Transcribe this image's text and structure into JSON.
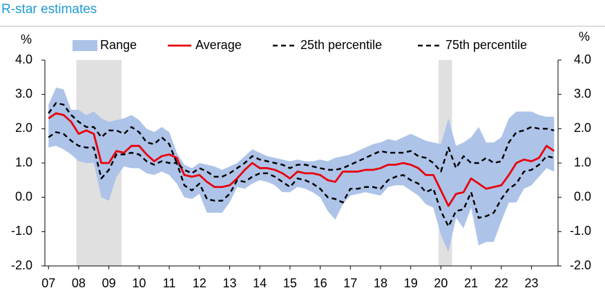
{
  "chart_data": {
    "type": "line",
    "title": "R-star estimates",
    "y_label": "%",
    "y2_label": "%",
    "x": [
      2007,
      2007.25,
      2007.5,
      2007.75,
      2008,
      2008.25,
      2008.5,
      2008.75,
      2009,
      2009.25,
      2009.5,
      2009.75,
      2010,
      2010.25,
      2010.5,
      2010.75,
      2011,
      2011.25,
      2011.5,
      2011.75,
      2012,
      2012.25,
      2012.5,
      2012.75,
      2013,
      2013.25,
      2013.5,
      2013.75,
      2014,
      2014.25,
      2014.5,
      2014.75,
      2015,
      2015.25,
      2015.5,
      2015.75,
      2016,
      2016.25,
      2016.5,
      2016.75,
      2017,
      2017.25,
      2017.5,
      2017.75,
      2018,
      2018.25,
      2018.5,
      2018.75,
      2019,
      2019.25,
      2019.5,
      2019.75,
      2020,
      2020.25,
      2020.5,
      2020.75,
      2021,
      2021.25,
      2021.5,
      2021.75,
      2022,
      2022.25,
      2022.5,
      2022.75,
      2023,
      2023.25,
      2023.5,
      2023.75
    ],
    "series": [
      {
        "name": "Range",
        "color": "#aec3e8",
        "band": true,
        "high": [
          2.7,
          3.2,
          3.15,
          2.55,
          2.55,
          2.4,
          2.5,
          2.3,
          2.2,
          2.25,
          2.3,
          2.4,
          2.25,
          2.0,
          1.9,
          2.05,
          1.9,
          1.3,
          0.95,
          0.85,
          1.0,
          0.95,
          0.9,
          0.8,
          0.9,
          1.0,
          1.2,
          1.4,
          1.3,
          1.2,
          1.15,
          1.1,
          1.05,
          1.1,
          1.05,
          1.05,
          1.1,
          1.05,
          1.15,
          1.2,
          1.25,
          1.35,
          1.45,
          1.55,
          1.6,
          1.7,
          1.65,
          1.75,
          1.85,
          1.75,
          1.65,
          1.6,
          1.55,
          2.3,
          1.5,
          1.6,
          1.75,
          2.05,
          1.6,
          1.6,
          1.75,
          2.3,
          2.5,
          2.5,
          2.5,
          2.4,
          2.35,
          2.35
        ],
        "low": [
          1.45,
          1.5,
          1.4,
          1.25,
          1.05,
          1.0,
          1.0,
          0.0,
          -0.1,
          0.6,
          0.9,
          0.85,
          0.85,
          0.7,
          0.65,
          0.75,
          0.65,
          0.4,
          0.0,
          -0.05,
          0.1,
          -0.45,
          -0.45,
          -0.45,
          -0.15,
          0.3,
          0.25,
          0.4,
          0.5,
          0.45,
          0.35,
          0.15,
          0.15,
          0.3,
          0.25,
          0.15,
          0.0,
          -0.4,
          -0.65,
          -0.2,
          0.05,
          0.1,
          0.15,
          0.1,
          0.05,
          0.3,
          0.35,
          0.35,
          0.2,
          0.05,
          -0.2,
          -0.3,
          -1.1,
          -1.6,
          -0.6,
          -0.9,
          -0.3,
          -1.4,
          -1.3,
          -1.3,
          -0.7,
          -0.15,
          -0.15,
          0.25,
          0.35,
          0.6,
          0.85,
          0.75
        ]
      },
      {
        "name": "Average",
        "color": "#e8000b",
        "dashed": false,
        "values": [
          2.3,
          2.45,
          2.4,
          2.2,
          1.85,
          1.95,
          1.85,
          1.0,
          1.0,
          1.35,
          1.3,
          1.5,
          1.5,
          1.25,
          1.05,
          1.2,
          1.25,
          1.15,
          0.65,
          0.6,
          0.65,
          0.45,
          0.3,
          0.3,
          0.35,
          0.55,
          0.8,
          1.0,
          0.85,
          0.85,
          0.8,
          0.7,
          0.55,
          0.75,
          0.7,
          0.7,
          0.65,
          0.5,
          0.45,
          0.75,
          0.75,
          0.75,
          0.8,
          0.8,
          0.85,
          0.95,
          0.95,
          1.0,
          0.95,
          0.85,
          0.65,
          0.65,
          0.2,
          -0.25,
          0.1,
          0.15,
          0.55,
          0.4,
          0.25,
          0.3,
          0.35,
          0.65,
          1.0,
          1.1,
          1.05,
          1.15,
          1.5,
          1.35
        ]
      },
      {
        "name": "25th percentile",
        "color": "#000000",
        "dashed": true,
        "values": [
          1.75,
          1.9,
          1.85,
          1.65,
          1.5,
          1.45,
          1.45,
          0.55,
          0.8,
          1.25,
          1.25,
          1.3,
          1.25,
          1.05,
          0.95,
          1.05,
          1.0,
          1.0,
          0.35,
          0.2,
          0.4,
          -0.05,
          -0.1,
          -0.1,
          0.1,
          0.5,
          0.45,
          0.6,
          0.7,
          0.7,
          0.6,
          0.45,
          0.3,
          0.55,
          0.5,
          0.4,
          0.25,
          0.0,
          -0.05,
          -0.15,
          0.25,
          0.25,
          0.3,
          0.3,
          0.25,
          0.5,
          0.6,
          0.65,
          0.5,
          0.4,
          0.15,
          0.25,
          -0.4,
          -0.85,
          -0.4,
          -0.35,
          0.15,
          -0.6,
          -0.55,
          -0.45,
          -0.05,
          0.25,
          0.4,
          0.75,
          0.8,
          0.95,
          1.2,
          1.15
        ]
      },
      {
        "name": "75th percentile",
        "color": "#000000",
        "dashed": true,
        "values": [
          2.45,
          2.75,
          2.7,
          2.4,
          2.2,
          2.05,
          2.05,
          1.75,
          1.95,
          1.95,
          1.85,
          2.05,
          1.9,
          1.6,
          1.55,
          1.75,
          1.55,
          1.0,
          0.8,
          0.7,
          0.85,
          0.75,
          0.6,
          0.6,
          0.7,
          0.85,
          1.0,
          1.2,
          1.1,
          1.05,
          1.0,
          0.95,
          0.85,
          0.95,
          0.95,
          0.9,
          0.85,
          0.8,
          0.8,
          0.85,
          0.95,
          1.05,
          1.15,
          1.25,
          1.35,
          1.3,
          1.3,
          1.3,
          1.35,
          1.2,
          1.15,
          1.0,
          0.75,
          1.45,
          0.85,
          1.2,
          1.0,
          1.0,
          1.15,
          1.0,
          1.05,
          1.6,
          1.9,
          1.95,
          2.05,
          2.0,
          2.0,
          1.95
        ]
      }
    ],
    "shaded_periods": [
      [
        2007.92,
        2009.42
      ],
      [
        2019.92,
        2020.37
      ]
    ],
    "shade_color": "#e0e0e0",
    "xlim": [
      2006.88,
      2023.88
    ],
    "xticks": [
      {
        "value": 2007,
        "label": "07"
      },
      {
        "value": 2008,
        "label": "08"
      },
      {
        "value": 2009,
        "label": "09"
      },
      {
        "value": 2010,
        "label": "10"
      },
      {
        "value": 2011,
        "label": "11"
      },
      {
        "value": 2012,
        "label": "12"
      },
      {
        "value": 2013,
        "label": "13"
      },
      {
        "value": 2014,
        "label": "14"
      },
      {
        "value": 2015,
        "label": "15"
      },
      {
        "value": 2016,
        "label": "16"
      },
      {
        "value": 2017,
        "label": "17"
      },
      {
        "value": 2018,
        "label": "18"
      },
      {
        "value": 2019,
        "label": "19"
      },
      {
        "value": 2020,
        "label": "20"
      },
      {
        "value": 2021,
        "label": "21"
      },
      {
        "value": 2022,
        "label": "22"
      },
      {
        "value": 2023,
        "label": "23"
      }
    ],
    "ylim": [
      -2,
      4
    ],
    "yticks": [
      {
        "value": -2,
        "label": "-2.0"
      },
      {
        "value": -1,
        "label": "-1.0"
      },
      {
        "value": 0,
        "label": "0.0"
      },
      {
        "value": 1,
        "label": "1.0"
      },
      {
        "value": 2,
        "label": "2.0"
      },
      {
        "value": 3,
        "label": "3.0"
      },
      {
        "value": 4,
        "label": "4.0"
      }
    ],
    "y2lim": [
      -2,
      4
    ],
    "y2ticks": [
      {
        "value": -2,
        "label": "-2.0"
      },
      {
        "value": -1,
        "label": "-1.0"
      },
      {
        "value": 0,
        "label": "0.0"
      },
      {
        "value": 1,
        "label": "1.0"
      },
      {
        "value": 2,
        "label": "2.0"
      },
      {
        "value": 3,
        "label": "3.0"
      },
      {
        "value": 4,
        "label": "4.0"
      }
    ],
    "grid": false,
    "legend": "top"
  }
}
